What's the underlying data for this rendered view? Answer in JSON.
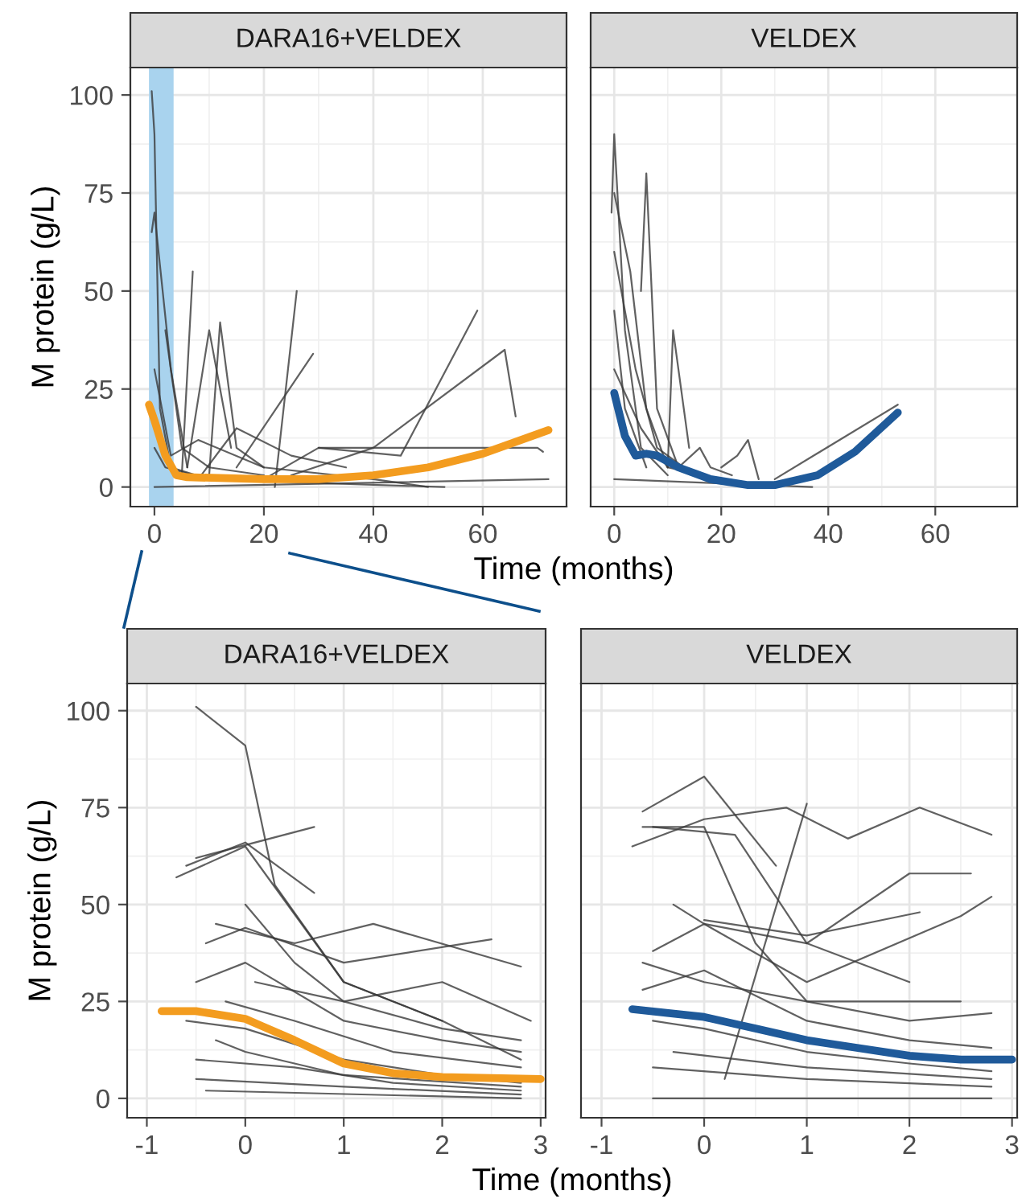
{
  "chart_data": [
    {
      "type": "line",
      "title": "DARA16+VELDEX",
      "xlabel": "Time (months)",
      "ylabel": "M protein (g/L)",
      "xlim": [
        -4.4,
        75.3
      ],
      "xticks": [
        0,
        20,
        40,
        60
      ],
      "ylim": [
        -5,
        107
      ],
      "yticks": [
        0,
        25,
        50,
        75,
        100
      ],
      "grid": true,
      "bands": [
        {
          "axis": "x",
          "from": -1,
          "to": 3.5,
          "color": "#a9d3ee"
        }
      ],
      "series": [
        {
          "color": "#3a3a3a",
          "x": [
            -0.5,
            0,
            1,
            3,
            10
          ],
          "values": [
            101,
            90,
            20,
            5,
            2
          ]
        },
        {
          "color": "#3a3a3a",
          "x": [
            -0.5,
            0,
            3,
            6
          ],
          "values": [
            65,
            70,
            30,
            5
          ]
        },
        {
          "color": "#3a3a3a",
          "x": [
            5,
            7
          ],
          "values": [
            3,
            55
          ]
        },
        {
          "color": "#3a3a3a",
          "x": [
            20,
            30,
            45,
            59
          ],
          "values": [
            2,
            10,
            8,
            45
          ]
        },
        {
          "color": "#3a3a3a",
          "x": [
            25,
            40,
            64,
            66
          ],
          "values": [
            3,
            10,
            35,
            18
          ]
        },
        {
          "color": "#3a3a3a",
          "x": [
            22,
            26
          ],
          "values": [
            0,
            50
          ]
        },
        {
          "color": "#3a3a3a",
          "x": [
            0,
            72
          ],
          "values": [
            0,
            2
          ]
        },
        {
          "color": "#3a3a3a",
          "x": [
            30,
            70,
            71
          ],
          "values": [
            10,
            10,
            9
          ]
        },
        {
          "color": "#3a3a3a",
          "x": [
            15,
            29
          ],
          "values": [
            5,
            34
          ]
        },
        {
          "color": "#3a3a3a",
          "x": [
            2,
            5,
            10,
            20
          ],
          "values": [
            40,
            10,
            5,
            3
          ]
        },
        {
          "color": "#3a3a3a",
          "x": [
            6,
            10,
            14
          ],
          "values": [
            5,
            40,
            10
          ]
        },
        {
          "color": "#3a3a3a",
          "x": [
            10,
            12,
            15,
            20
          ],
          "values": [
            3,
            42,
            10,
            5
          ]
        },
        {
          "color": "#3a3a3a",
          "x": [
            8,
            15,
            25,
            35
          ],
          "values": [
            2,
            15,
            8,
            5
          ]
        },
        {
          "color": "#3a3a3a",
          "x": [
            0,
            3,
            8,
            20,
            40,
            50
          ],
          "values": [
            30,
            8,
            12,
            5,
            2,
            0
          ]
        },
        {
          "color": "#3a3a3a",
          "x": [
            0,
            2,
            10,
            30,
            53
          ],
          "values": [
            10,
            5,
            2,
            1,
            0
          ]
        },
        {
          "color": "#f39c1f",
          "x": [
            -1,
            0,
            2,
            4,
            6,
            20,
            30,
            40,
            50,
            60,
            72
          ],
          "values": [
            21,
            17,
            8,
            3,
            2.5,
            2,
            2,
            3,
            5,
            8.5,
            14.5
          ]
        }
      ]
    },
    {
      "type": "line",
      "title": "VELDEX",
      "xlim": [
        -4.4,
        75.3
      ],
      "xticks": [
        0,
        20,
        40,
        60
      ],
      "ylim": [
        -5,
        107
      ],
      "yticks": [
        0,
        25,
        50,
        75,
        100
      ],
      "grid": true,
      "tick_labels": "x",
      "series": [
        {
          "color": "#3a3a3a",
          "x": [
            -0.5,
            0,
            2,
            5,
            10
          ],
          "values": [
            70,
            90,
            40,
            10,
            3
          ]
        },
        {
          "color": "#3a3a3a",
          "x": [
            5,
            6,
            8,
            12
          ],
          "values": [
            50,
            80,
            20,
            5
          ]
        },
        {
          "color": "#3a3a3a",
          "x": [
            0,
            3,
            6,
            10
          ],
          "values": [
            75,
            55,
            20,
            5
          ]
        },
        {
          "color": "#3a3a3a",
          "x": [
            10,
            11,
            14
          ],
          "values": [
            5,
            40,
            10
          ]
        },
        {
          "color": "#3a3a3a",
          "x": [
            0,
            4,
            8,
            15
          ],
          "values": [
            60,
            30,
            10,
            3
          ]
        },
        {
          "color": "#3a3a3a",
          "x": [
            20,
            23,
            25,
            27
          ],
          "values": [
            5,
            8,
            12,
            2
          ]
        },
        {
          "color": "#3a3a3a",
          "x": [
            0,
            37
          ],
          "values": [
            2,
            0
          ]
        },
        {
          "color": "#3a3a3a",
          "x": [
            30,
            53
          ],
          "values": [
            2,
            21
          ]
        },
        {
          "color": "#3a3a3a",
          "x": [
            0,
            5,
            10,
            20
          ],
          "values": [
            30,
            15,
            5,
            2
          ]
        },
        {
          "color": "#3a3a3a",
          "x": [
            0,
            2,
            6
          ],
          "values": [
            45,
            20,
            5
          ]
        },
        {
          "color": "#3a3a3a",
          "x": [
            12,
            16,
            18,
            22
          ],
          "values": [
            5,
            10,
            5,
            3
          ]
        },
        {
          "color": "#1f5a9a",
          "x": [
            0,
            2,
            4,
            6,
            8,
            12,
            18,
            25,
            30,
            38,
            45,
            53
          ],
          "values": [
            24,
            13,
            8,
            8.5,
            8,
            5,
            2,
            0.5,
            0.5,
            3,
            9,
            19
          ]
        }
      ]
    },
    {
      "type": "line",
      "title": "DARA16+VELDEX",
      "xlabel": "Time (months)",
      "ylabel": "M protein (g/L)",
      "xlim": [
        -1.2,
        3.05
      ],
      "xticks": [
        -1,
        0,
        1,
        2,
        3
      ],
      "ylim": [
        -5,
        107
      ],
      "yticks": [
        0,
        25,
        50,
        75,
        100
      ],
      "grid": true,
      "series": [
        {
          "color": "#3a3a3a",
          "x": [
            -0.5,
            0,
            0.3,
            1,
            2
          ],
          "values": [
            101,
            91,
            55,
            30,
            20
          ]
        },
        {
          "color": "#3a3a3a",
          "x": [
            -0.6,
            0,
            0.7
          ],
          "values": [
            60,
            66,
            53
          ]
        },
        {
          "color": "#3a3a3a",
          "x": [
            -0.5,
            0.7
          ],
          "values": [
            62,
            70
          ]
        },
        {
          "color": "#3a3a3a",
          "x": [
            -0.7,
            0,
            1,
            2,
            2.8
          ],
          "values": [
            57,
            65,
            30,
            20,
            10
          ]
        },
        {
          "color": "#3a3a3a",
          "x": [
            -0.3,
            0.5,
            1.3,
            2.8
          ],
          "values": [
            45,
            40,
            45,
            34
          ]
        },
        {
          "color": "#3a3a3a",
          "x": [
            -0.4,
            0,
            1,
            2.5
          ],
          "values": [
            40,
            44,
            35,
            41
          ]
        },
        {
          "color": "#3a3a3a",
          "x": [
            -0.5,
            0,
            1,
            2,
            2.8
          ],
          "values": [
            30,
            35,
            20,
            15,
            12
          ]
        },
        {
          "color": "#3a3a3a",
          "x": [
            -0.6,
            0,
            1,
            2,
            2.8
          ],
          "values": [
            20,
            18,
            10,
            6,
            4
          ]
        },
        {
          "color": "#3a3a3a",
          "x": [
            -0.5,
            0.5,
            1.5,
            2.8
          ],
          "values": [
            10,
            8,
            4,
            2
          ]
        },
        {
          "color": "#3a3a3a",
          "x": [
            -0.4,
            2.8
          ],
          "values": [
            2,
            0
          ]
        },
        {
          "color": "#3a3a3a",
          "x": [
            -0.3,
            0,
            1,
            2.8
          ],
          "values": [
            15,
            12,
            6,
            3
          ]
        },
        {
          "color": "#3a3a3a",
          "x": [
            -0.2,
            0.5,
            1.5,
            2.8
          ],
          "values": [
            25,
            20,
            12,
            8
          ]
        },
        {
          "color": "#3a3a3a",
          "x": [
            0,
            0.5,
            1,
            2,
            2.8
          ],
          "values": [
            50,
            35,
            25,
            18,
            15
          ]
        },
        {
          "color": "#3a3a3a",
          "x": [
            -0.5,
            1,
            2.8
          ],
          "values": [
            5,
            3,
            1
          ]
        },
        {
          "color": "#3a3a3a",
          "x": [
            0.1,
            1,
            2,
            2.9
          ],
          "values": [
            30,
            25,
            30,
            20
          ]
        },
        {
          "color": "#f39c1f",
          "x": [
            -0.85,
            -0.5,
            0,
            0.5,
            1,
            1.5,
            2,
            3
          ],
          "values": [
            22.5,
            22.5,
            20.5,
            15,
            9,
            6.5,
            5.5,
            5
          ]
        }
      ]
    },
    {
      "type": "line",
      "title": "VELDEX",
      "xlim": [
        -1.2,
        3.05
      ],
      "xticks": [
        -1,
        0,
        1,
        2,
        3
      ],
      "ylim": [
        -5,
        107
      ],
      "yticks": [
        0,
        25,
        50,
        75,
        100
      ],
      "grid": true,
      "tick_labels": "x",
      "series": [
        {
          "color": "#3a3a3a",
          "x": [
            -0.6,
            0,
            0.7
          ],
          "values": [
            74,
            83,
            60
          ]
        },
        {
          "color": "#3a3a3a",
          "x": [
            -0.7,
            0,
            0.8,
            1.4,
            2.1,
            2.8
          ],
          "values": [
            65,
            72,
            75,
            67,
            75,
            68
          ]
        },
        {
          "color": "#3a3a3a",
          "x": [
            -0.5,
            0.3,
            1,
            2
          ],
          "values": [
            70,
            68,
            40,
            30
          ]
        },
        {
          "color": "#3a3a3a",
          "x": [
            -0.6,
            0,
            0.5,
            1,
            2.5
          ],
          "values": [
            70,
            70,
            40,
            25,
            25
          ]
        },
        {
          "color": "#3a3a3a",
          "x": [
            0.2,
            1
          ],
          "values": [
            5,
            76
          ]
        },
        {
          "color": "#3a3a3a",
          "x": [
            -0.5,
            0,
            1,
            2,
            2.6
          ],
          "values": [
            38,
            45,
            40,
            58,
            58
          ]
        },
        {
          "color": "#3a3a3a",
          "x": [
            -0.3,
            0,
            1,
            2.5,
            2.8
          ],
          "values": [
            50,
            45,
            30,
            47,
            52
          ]
        },
        {
          "color": "#3a3a3a",
          "x": [
            0,
            1,
            2.1
          ],
          "values": [
            46,
            42,
            48
          ]
        },
        {
          "color": "#3a3a3a",
          "x": [
            -0.6,
            0,
            1,
            2,
            2.8
          ],
          "values": [
            35,
            30,
            25,
            20,
            22
          ]
        },
        {
          "color": "#3a3a3a",
          "x": [
            -0.5,
            0,
            1,
            2,
            2.8
          ],
          "values": [
            20,
            18,
            12,
            9,
            7
          ]
        },
        {
          "color": "#3a3a3a",
          "x": [
            -0.5,
            1,
            2.8
          ],
          "values": [
            8,
            5,
            3
          ]
        },
        {
          "color": "#3a3a3a",
          "x": [
            -0.5,
            2.8
          ],
          "values": [
            0,
            0
          ]
        },
        {
          "color": "#3a3a3a",
          "x": [
            -0.6,
            0,
            1,
            2,
            2.8
          ],
          "values": [
            28,
            33,
            20,
            15,
            13
          ]
        },
        {
          "color": "#3a3a3a",
          "x": [
            -0.3,
            1,
            2.8
          ],
          "values": [
            12,
            8,
            5
          ]
        },
        {
          "color": "#1f5a9a",
          "x": [
            -0.7,
            0,
            0.5,
            1,
            1.5,
            2,
            2.5,
            3
          ],
          "values": [
            23,
            21,
            18,
            15,
            13,
            11,
            10,
            10
          ]
        }
      ]
    }
  ]
}
